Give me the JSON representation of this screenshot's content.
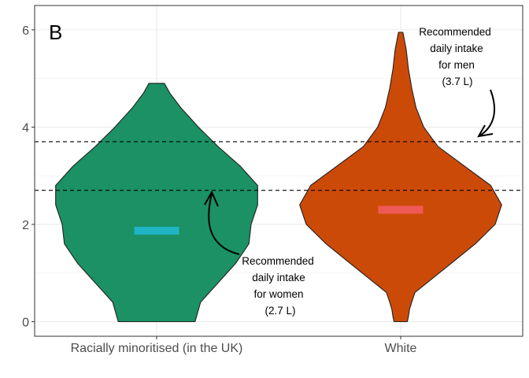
{
  "chart_data": {
    "type": "violin",
    "panel_tag": "B",
    "xlabel": "",
    "ylabel": "",
    "ylim": [
      -0.3,
      6.5
    ],
    "yticks": [
      0,
      2,
      4,
      6
    ],
    "grid": true,
    "categories": [
      "Racially minoritised (in the UK)",
      "White"
    ],
    "groups": [
      {
        "name": "Racially minoritised (in the UK)",
        "fill": "#1b9165",
        "median": 1.87,
        "median_color": "#1fb4c4",
        "ymin": 0,
        "ymax": 4.9,
        "profile": [
          [
            0,
            0.35
          ],
          [
            0.4,
            0.4
          ],
          [
            0.8,
            0.56
          ],
          [
            1.2,
            0.72
          ],
          [
            1.6,
            0.84
          ],
          [
            2.0,
            0.86
          ],
          [
            2.4,
            0.92
          ],
          [
            2.8,
            0.92
          ],
          [
            3.2,
            0.76
          ],
          [
            3.6,
            0.56
          ],
          [
            4.0,
            0.38
          ],
          [
            4.4,
            0.22
          ],
          [
            4.7,
            0.12
          ],
          [
            4.9,
            0.07
          ]
        ]
      },
      {
        "name": "White",
        "fill": "#cc4a08",
        "median": 2.3,
        "median_color": "#ee5a55",
        "ymin": 0,
        "ymax": 5.95,
        "profile": [
          [
            0,
            0.06
          ],
          [
            0.1,
            0.07
          ],
          [
            0.25,
            0.08
          ],
          [
            0.4,
            0.1
          ],
          [
            0.6,
            0.13
          ],
          [
            0.8,
            0.24
          ],
          [
            1.2,
            0.46
          ],
          [
            1.6,
            0.68
          ],
          [
            2.0,
            0.86
          ],
          [
            2.4,
            0.92
          ],
          [
            2.8,
            0.82
          ],
          [
            3.2,
            0.58
          ],
          [
            3.6,
            0.34
          ],
          [
            4.0,
            0.21
          ],
          [
            4.4,
            0.14
          ],
          [
            4.8,
            0.1
          ],
          [
            5.2,
            0.07
          ],
          [
            5.6,
            0.05
          ],
          [
            5.95,
            0.02
          ]
        ]
      }
    ],
    "reference_lines": [
      {
        "y": 2.7,
        "style": "dashed"
      },
      {
        "y": 3.7,
        "style": "dashed"
      }
    ],
    "annotations": [
      {
        "lines": [
          "Recommended",
          "daily intake",
          "for women",
          "(2.7 L)"
        ],
        "points_to_y": 2.7
      },
      {
        "lines": [
          "Recommended",
          "daily intake",
          "for men",
          "(3.7 L)"
        ],
        "points_to_y": 3.7
      }
    ]
  }
}
